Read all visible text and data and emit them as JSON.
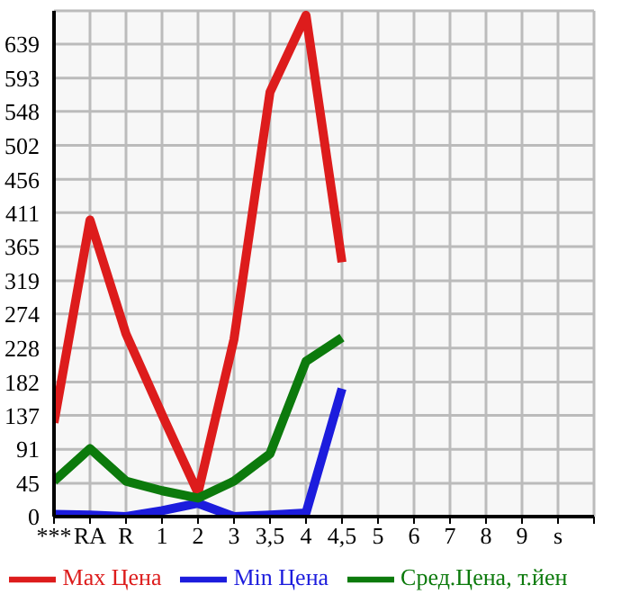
{
  "chart_data": {
    "type": "line",
    "categories": [
      "***",
      "RA",
      "R",
      "1",
      "2",
      "3",
      "3,5",
      "4",
      "4,5",
      "5",
      "6",
      "7",
      "8",
      "9",
      "s"
    ],
    "series": [
      {
        "name": "Max Цена",
        "color": "#dd1c1c",
        "values": [
          127,
          401,
          247,
          138,
          32,
          240,
          574,
          678,
          344,
          null,
          null,
          null,
          null,
          null,
          null
        ]
      },
      {
        "name": "Min Цена",
        "color": "#1c1cdd",
        "values": [
          3,
          2,
          0,
          8,
          18,
          0,
          2,
          5,
          173,
          null,
          null,
          null,
          null,
          null,
          null
        ]
      },
      {
        "name": "Сред.Цена, т.йен",
        "color": "#0c7a0c",
        "values": [
          48,
          92,
          48,
          35,
          25,
          48,
          85,
          210,
          242,
          null,
          null,
          null,
          null,
          null,
          null
        ]
      }
    ],
    "ylim": [
      0,
      684
    ],
    "yticks": [
      0,
      45,
      91,
      137,
      182,
      228,
      274,
      319,
      365,
      411,
      456,
      502,
      548,
      593,
      639
    ],
    "grid": true,
    "legend": "bottom",
    "marker": "none",
    "line_style": "solid"
  }
}
